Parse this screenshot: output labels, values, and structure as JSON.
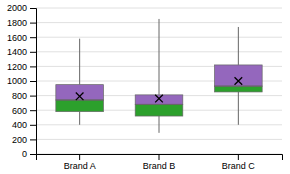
{
  "chart_data": {
    "type": "box",
    "categories": [
      "Brand A",
      "Brand B",
      "Brand C"
    ],
    "boxes": [
      {
        "q1": 580,
        "median": 740,
        "q3": 950,
        "whisker_low": 400,
        "whisker_high": 1580,
        "mean": 790
      },
      {
        "q1": 520,
        "median": 680,
        "q3": 810,
        "whisker_low": 290,
        "whisker_high": 1850,
        "mean": 760
      },
      {
        "q1": 850,
        "median": 930,
        "q3": 1220,
        "whisker_low": 400,
        "whisker_high": 1740,
        "mean": 1000
      }
    ],
    "marker": "x",
    "ylim": [
      0,
      2000
    ],
    "yticks": [
      0,
      200,
      400,
      600,
      800,
      1000,
      1200,
      1400,
      1600,
      1800,
      2000
    ],
    "grid": true
  }
}
